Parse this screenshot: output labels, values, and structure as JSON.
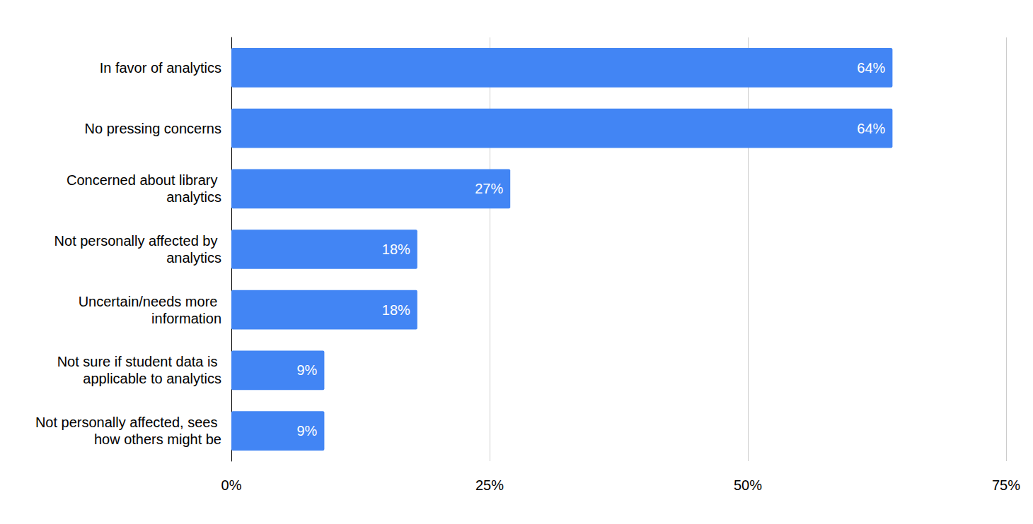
{
  "chart_data": {
    "type": "bar",
    "orientation": "horizontal",
    "categories": [
      "In favor of analytics",
      "No pressing concerns",
      "Concerned about library analytics",
      "Not personally affected by analytics",
      "Uncertain/needs more information",
      "Not sure if student data is applicable to analytics",
      "Not personally affected, sees how others might be"
    ],
    "values": [
      64,
      64,
      27,
      18,
      18,
      9,
      9
    ],
    "value_labels": [
      "64%",
      "64%",
      "27%",
      "18%",
      "18%",
      "9%",
      "9%"
    ],
    "color": "#4285f4",
    "xlim": [
      0,
      75
    ],
    "xticks": [
      {
        "value": 0,
        "label": "0%"
      },
      {
        "value": 25,
        "label": "25%"
      },
      {
        "value": 50,
        "label": "50%"
      },
      {
        "value": 75,
        "label": "75%"
      }
    ],
    "grid": true,
    "data_labels": true
  }
}
